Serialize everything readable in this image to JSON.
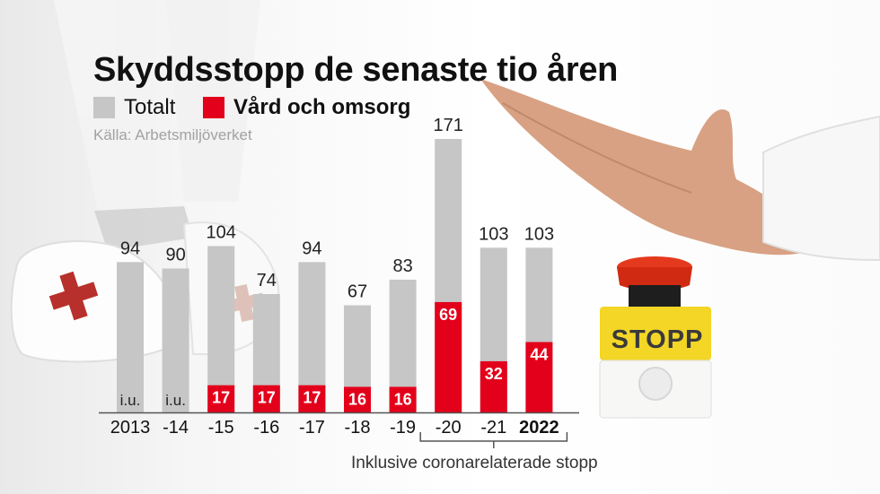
{
  "title": "Skyddsstopp de senaste tio åren",
  "legend": [
    {
      "label": "Totalt",
      "color": "#c6c6c6"
    },
    {
      "label": "Vård och omsorg",
      "color": "#e3001b"
    }
  ],
  "source": "Källa: Arbetsmiljöverket",
  "note": "Inklusive coronarelaterade stopp",
  "button_label": "STOPP",
  "chart_data": {
    "type": "bar",
    "title": "Skyddsstopp de senaste tio åren",
    "categories": [
      "2013",
      "-14",
      "-15",
      "-16",
      "-17",
      "-18",
      "-19",
      "-20",
      "-21",
      "2022"
    ],
    "bold_category": "2022",
    "series": [
      {
        "name": "Totalt",
        "color": "#c6c6c6",
        "values": [
          94,
          90,
          104,
          74,
          94,
          67,
          83,
          171,
          103,
          103
        ]
      },
      {
        "name": "Vård och omsorg",
        "color": "#e3001b",
        "values": [
          null,
          null,
          17,
          17,
          17,
          16,
          16,
          69,
          32,
          44
        ]
      }
    ],
    "missing_label": "i.u.",
    "bracket_categories": [
      "-20",
      "-21",
      "2022"
    ],
    "xlabel": "",
    "ylabel": "",
    "ylim": [
      0,
      171
    ],
    "grid": false,
    "legend_position": "top-left"
  },
  "colors": {
    "accent": "#e3001b",
    "total": "#c6c6c6",
    "button_yellow": "#f3d626"
  },
  "icons": [
    "red-cross-icon",
    "stop-button-icon",
    "hand-icon"
  ]
}
